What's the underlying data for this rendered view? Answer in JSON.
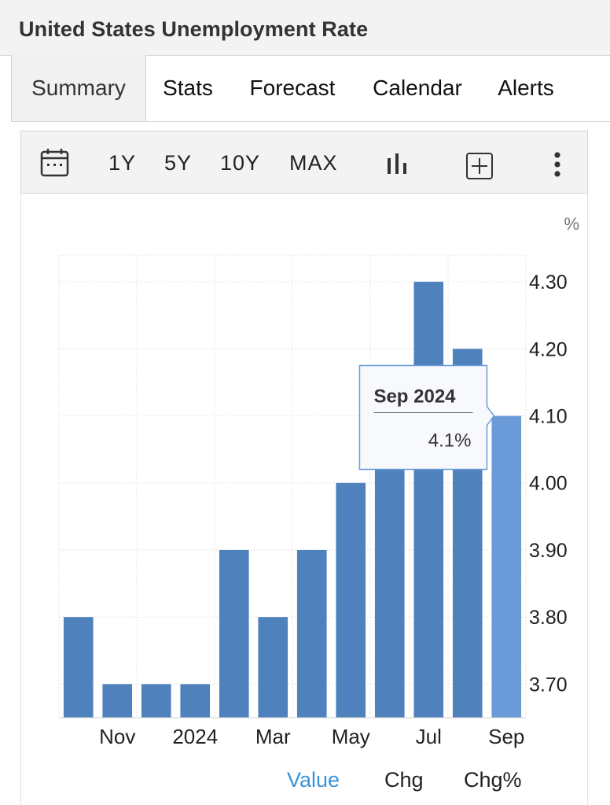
{
  "page": {
    "title": "United States Unemployment Rate"
  },
  "tabs": [
    {
      "label": "Summary",
      "active": true
    },
    {
      "label": "Stats",
      "active": false
    },
    {
      "label": "Forecast",
      "active": false
    },
    {
      "label": "Calendar",
      "active": false
    },
    {
      "label": "Alerts",
      "active": false
    }
  ],
  "toolbar": {
    "ranges": [
      "1Y",
      "5Y",
      "10Y",
      "MAX"
    ],
    "icons": [
      "calendar-icon",
      "bar-chart-icon",
      "add-box-icon",
      "more-vertical-icon"
    ]
  },
  "tooltip": {
    "title": "Sep 2024",
    "value": "4.1%"
  },
  "value_toggle": {
    "options": [
      "Value",
      "Chg",
      "Chg%"
    ],
    "active": "Value"
  },
  "colors": {
    "bar": "#4f81bd",
    "bar_highlight": "#6a9bd8",
    "accent": "#3b94d9",
    "grid": "#e6e6e6"
  },
  "chart_data": {
    "type": "bar",
    "title": "",
    "unit": "%",
    "categories": [
      "Oct 2023",
      "Nov 2023",
      "Dec 2023",
      "Jan 2024",
      "Feb 2024",
      "Mar 2024",
      "Apr 2024",
      "May 2024",
      "Jun 2024",
      "Jul 2024",
      "Aug 2024",
      "Sep 2024"
    ],
    "values": [
      3.8,
      3.7,
      3.7,
      3.7,
      3.9,
      3.8,
      3.9,
      4.0,
      4.1,
      4.3,
      4.2,
      4.1
    ],
    "highlighted": "Sep 2024",
    "x_tick_labels": [
      "Nov",
      "2024",
      "Mar",
      "May",
      "Jul",
      "Sep"
    ],
    "x_tick_categories": [
      "Nov 2023",
      "Jan 2024",
      "Mar 2024",
      "May 2024",
      "Jul 2024",
      "Sep 2024"
    ],
    "y_ticks": [
      "3.70",
      "3.80",
      "3.90",
      "4.00",
      "4.10",
      "4.20",
      "4.30"
    ],
    "y_tick_values": [
      3.7,
      3.8,
      3.9,
      4.0,
      4.1,
      4.2,
      4.3
    ],
    "ylim": [
      3.65,
      4.34
    ],
    "y_axis_side": "right",
    "grid": true
  }
}
